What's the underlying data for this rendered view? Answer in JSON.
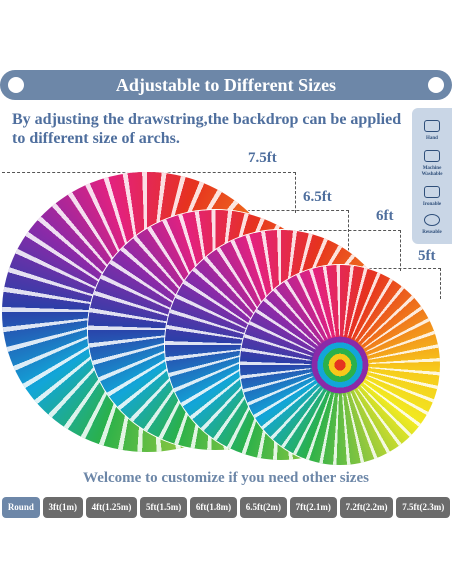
{
  "header": {
    "title": "Adjustable to Different Sizes"
  },
  "description": "By adjusting the drawstring,the backdrop can be applied to different size of archs.",
  "sizes": [
    "7.5ft",
    "6.5ft",
    "6ft",
    "5ft"
  ],
  "care_icons": [
    "Hand",
    "Machine Washable",
    "Ironable",
    "Reusable"
  ],
  "footer": "Welcome to customize if you need other sizes",
  "buttons": [
    "Round",
    "3ft(1m)",
    "4ft(1.25m)",
    "5ft(1.5m)",
    "6ft(1.8m)",
    "6.5ft(2m)",
    "7ft(2.1m)",
    "7.2ft(2.2m)",
    "7.5ft(2.3m)"
  ]
}
